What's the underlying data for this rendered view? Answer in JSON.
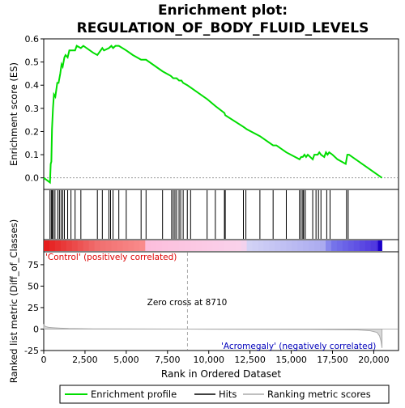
{
  "chart_data": {
    "type": "line",
    "title_line1": "Enrichment plot:",
    "title_line2": "REGULATION_OF_BODY_FLUID_LEVELS",
    "xlabel": "Rank in Ordered Dataset",
    "ylabel_top": "Enrichment score (ES)",
    "ylabel_bottom": "Ranked list metric (Diff_of_Classes)",
    "xlim": [
      0,
      21500
    ],
    "es_ylim": [
      -0.05,
      0.6
    ],
    "es_yticks": [
      "0.0",
      "0.1",
      "0.2",
      "0.3",
      "0.4",
      "0.5",
      "0.6"
    ],
    "es_ytick_values": [
      0.0,
      0.1,
      0.2,
      0.3,
      0.4,
      0.5,
      0.6
    ],
    "metric_ylim": [
      -25,
      90
    ],
    "metric_yticks": [
      "-25",
      "0",
      "25",
      "50",
      "75"
    ],
    "metric_ytick_values": [
      -25,
      0,
      25,
      50,
      75
    ],
    "xticks": [
      "0",
      "2,500",
      "5,000",
      "7,500",
      "10,000",
      "12,500",
      "15,000",
      "17,500",
      "20,000"
    ],
    "xtick_values": [
      0,
      2500,
      5000,
      7500,
      10000,
      12500,
      15000,
      17500,
      20000
    ],
    "enrichment_profile": {
      "x": [
        0,
        380,
        420,
        460,
        500,
        560,
        620,
        700,
        820,
        900,
        1000,
        1080,
        1150,
        1250,
        1320,
        1450,
        1550,
        1900,
        2000,
        2250,
        2400,
        3000,
        3250,
        3350,
        3550,
        3650,
        3950,
        4100,
        4200,
        4350,
        4550,
        5000,
        5400,
        5900,
        6200,
        7200,
        7700,
        7850,
        7950,
        8050,
        8200,
        8350,
        8450,
        8700,
        8900,
        9900,
        10400,
        10950,
        11000,
        12100,
        12300,
        13100,
        13900,
        14100,
        14700,
        15500,
        15600,
        15700,
        15800,
        15900,
        16000,
        16300,
        16400,
        16600,
        16700,
        16800,
        17000,
        17100,
        17200,
        17300,
        17500,
        17800,
        18300,
        18400,
        18500,
        20500
      ],
      "y": [
        0.0,
        -0.02,
        0.06,
        0.07,
        0.21,
        0.3,
        0.36,
        0.35,
        0.41,
        0.41,
        0.45,
        0.49,
        0.48,
        0.52,
        0.53,
        0.52,
        0.55,
        0.55,
        0.57,
        0.56,
        0.57,
        0.54,
        0.53,
        0.54,
        0.56,
        0.55,
        0.56,
        0.57,
        0.56,
        0.57,
        0.57,
        0.55,
        0.53,
        0.51,
        0.51,
        0.46,
        0.44,
        0.43,
        0.43,
        0.43,
        0.42,
        0.42,
        0.41,
        0.4,
        0.39,
        0.34,
        0.31,
        0.28,
        0.27,
        0.22,
        0.21,
        0.18,
        0.14,
        0.14,
        0.11,
        0.08,
        0.09,
        0.09,
        0.1,
        0.09,
        0.1,
        0.08,
        0.1,
        0.1,
        0.11,
        0.1,
        0.09,
        0.11,
        0.1,
        0.11,
        0.1,
        0.08,
        0.06,
        0.1,
        0.1,
        0.0
      ]
    },
    "hits": [
      380,
      460,
      520,
      580,
      680,
      850,
      950,
      1050,
      1150,
      1250,
      1450,
      1650,
      1900,
      2250,
      3250,
      3550,
      3950,
      4050,
      4200,
      4550,
      5000,
      5900,
      6200,
      7200,
      7750,
      7850,
      7950,
      8050,
      8200,
      8300,
      8450,
      8700,
      8900,
      9900,
      10400,
      10950,
      11000,
      12100,
      12250,
      13100,
      13900,
      14700,
      15500,
      15600,
      15700,
      15750,
      15850,
      16300,
      16500,
      16650,
      16800,
      17150,
      17350,
      18350,
      18450
    ],
    "metric_curve": {
      "x": [
        0,
        100,
        300,
        600,
        1000,
        1500,
        3000,
        6000,
        8710,
        12000,
        16000,
        19000,
        19800,
        20200,
        20350,
        20450,
        20500
      ],
      "y": [
        5,
        3,
        2,
        1.5,
        1,
        0.6,
        0.3,
        0.1,
        0,
        -0.2,
        -0.5,
        -1,
        -2,
        -4,
        -8,
        -15,
        -22
      ]
    },
    "zero_cross_label": "Zero cross at 8710",
    "zero_cross_x": 8710,
    "positive_label": "'Control' (positively correlated)",
    "negative_label": "'Acromegaly' (negatively correlated)",
    "colorbar_max": 20500,
    "colors": {
      "profile": "#00dd00",
      "hits": "#000000",
      "metric": "#aaaaaa",
      "positive_text": "#dd0000",
      "negative_text": "#0000bb",
      "zero_line": "#aaaaaa"
    },
    "legend": [
      {
        "label": "Enrichment profile",
        "style": "green-line"
      },
      {
        "label": "Hits",
        "style": "black-line"
      },
      {
        "label": "Ranking metric scores",
        "style": "gray-line"
      }
    ]
  }
}
